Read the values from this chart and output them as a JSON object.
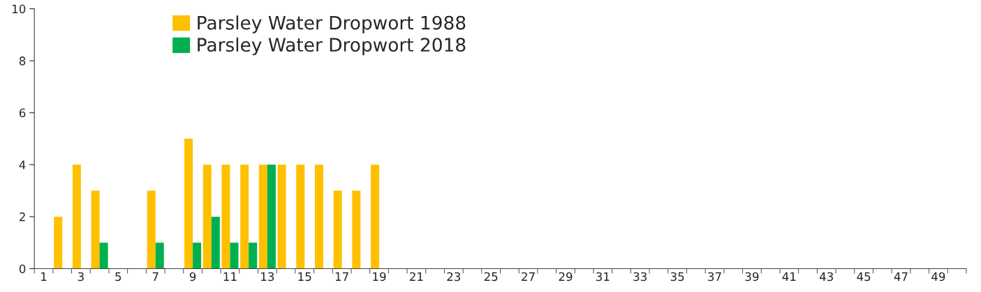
{
  "chart_data": {
    "type": "bar",
    "categories": [
      "1",
      null,
      "3",
      null,
      "5",
      null,
      "7",
      null,
      "9",
      null,
      "11",
      null,
      "13",
      null,
      "15",
      null,
      "17",
      null,
      "19",
      null,
      "21",
      null,
      "23",
      null,
      "25",
      null,
      "27",
      null,
      "29",
      null,
      "31",
      null,
      "33",
      null,
      "35",
      null,
      "37",
      null,
      "39",
      null,
      "41",
      null,
      "43",
      null,
      "45",
      null,
      "47",
      null,
      "49",
      null
    ],
    "series": [
      {
        "name": "Parsley Water Dropwort 1988",
        "color": "#ffc000",
        "values": [
          null,
          2,
          4,
          3,
          null,
          null,
          3,
          null,
          5,
          4,
          4,
          4,
          4,
          4,
          4,
          4,
          3,
          3,
          4,
          null,
          null,
          null,
          null,
          null,
          null,
          null,
          null,
          null,
          null,
          null,
          null,
          null,
          null,
          null,
          null,
          null,
          null,
          null,
          null,
          null,
          null,
          null,
          null,
          null,
          null,
          null,
          null,
          null,
          null,
          null
        ]
      },
      {
        "name": "Parsley Water Dropwort 2018",
        "color": "#00b050",
        "values": [
          null,
          null,
          null,
          1,
          null,
          null,
          1,
          null,
          1,
          2,
          1,
          1,
          4,
          null,
          null,
          null,
          null,
          null,
          null,
          null,
          null,
          null,
          null,
          null,
          null,
          null,
          null,
          null,
          null,
          null,
          null,
          null,
          null,
          null,
          null,
          null,
          null,
          null,
          null,
          null,
          null,
          null,
          null,
          null,
          null,
          null,
          null,
          null,
          null,
          null
        ]
      }
    ],
    "ylim": [
      0,
      10
    ],
    "yticks": [
      0,
      2,
      4,
      6,
      8,
      10
    ],
    "grid": false,
    "legend": "top left"
  }
}
